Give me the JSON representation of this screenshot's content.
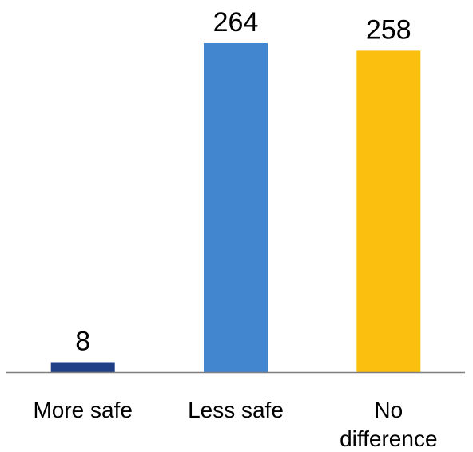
{
  "chart_data": {
    "type": "bar",
    "categories": [
      [
        "More safe"
      ],
      [
        "Less safe"
      ],
      [
        "No",
        "difference"
      ]
    ],
    "values": [
      8,
      264,
      258
    ],
    "colors": [
      "#1f3f87",
      "#4286d0",
      "#fbbf0f"
    ],
    "ylim": [
      0,
      264
    ],
    "grid": false,
    "legend": "none",
    "axis_color": "#7f7f7f"
  }
}
